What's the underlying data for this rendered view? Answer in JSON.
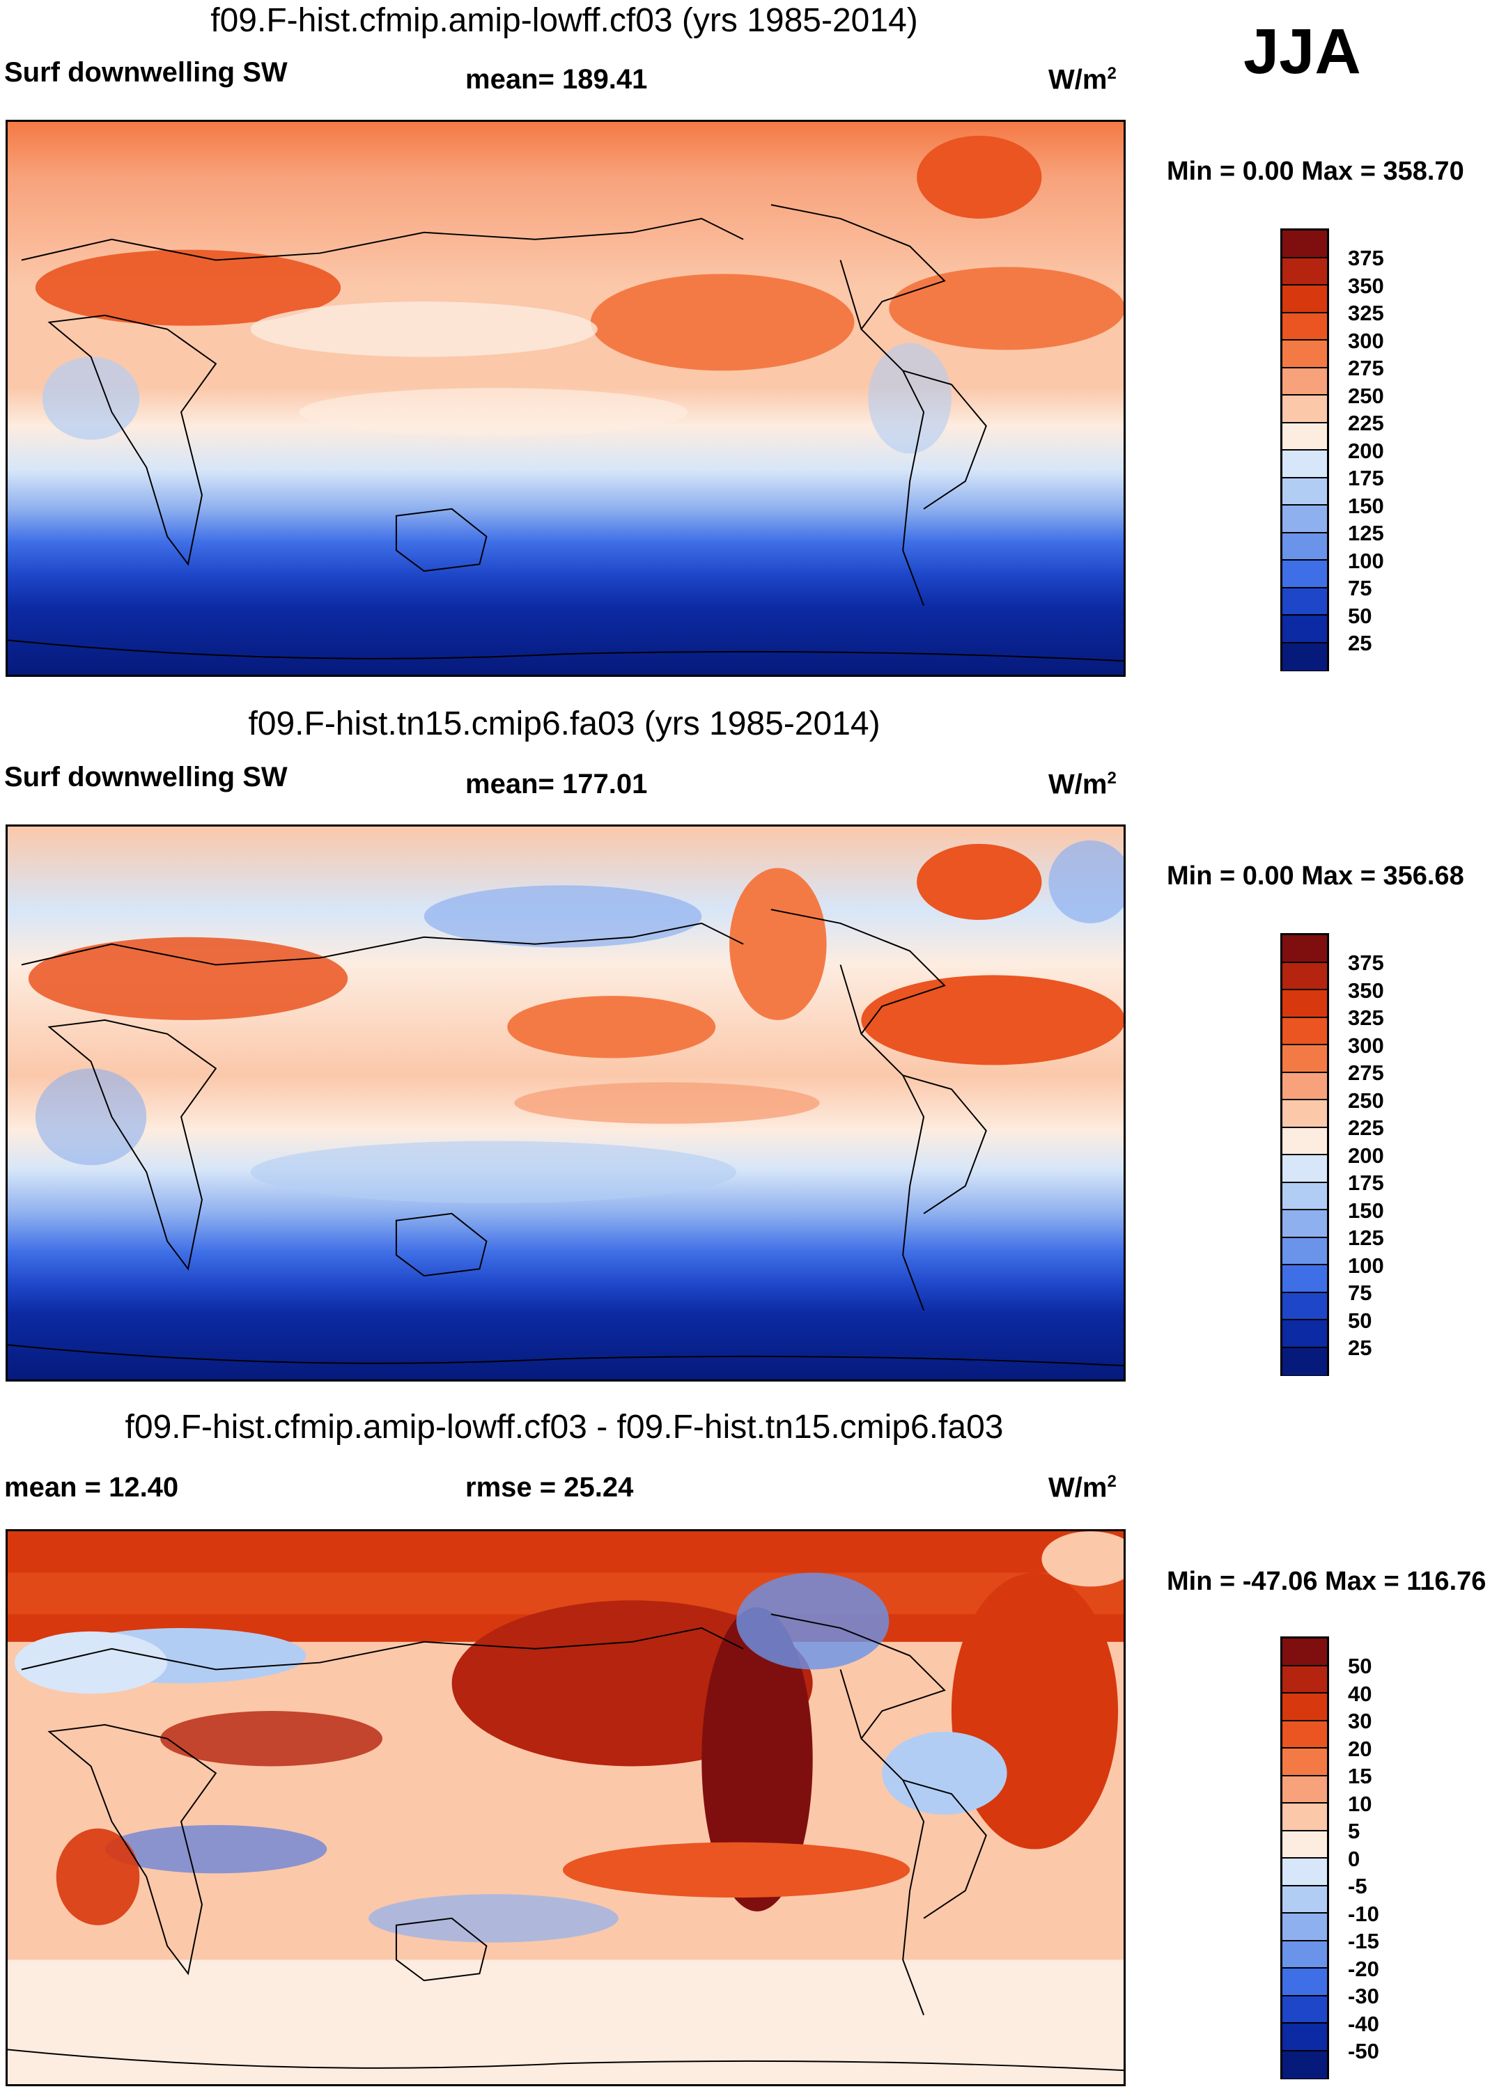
{
  "season": "JJA",
  "panels": [
    {
      "title": "f09.F-hist.cfmip.amip-lowff.cf03 (yrs 1985-2014)",
      "left_label": "Surf downwelling SW",
      "center_label": "mean= 189.41",
      "units": "W/m",
      "units_sup": "2",
      "minmax": "Min =   0.00 Max = 358.70"
    },
    {
      "title": "f09.F-hist.tn15.cmip6.fa03 (yrs 1985-2014)",
      "left_label": "Surf downwelling SW",
      "center_label": "mean= 177.01",
      "units": "W/m",
      "units_sup": "2",
      "minmax": "Min =   0.00 Max = 356.68"
    },
    {
      "title": "f09.F-hist.cfmip.amip-lowff.cf03 - f09.F-hist.tn15.cmip6.fa03",
      "left_label": "mean =  12.40",
      "center_label": "rmse =  25.24",
      "units": "W/m",
      "units_sup": "2",
      "minmax": "Min = -47.06 Max = 116.76"
    }
  ],
  "colorbar_abs": {
    "labels": [
      "375",
      "350",
      "325",
      "300",
      "275",
      "250",
      "225",
      "200",
      "175",
      "150",
      "125",
      "100",
      "75",
      "50",
      "25"
    ],
    "colors": [
      "#7f0f0f",
      "#b5240e",
      "#d8380e",
      "#ea5521",
      "#f47a45",
      "#f8a27b",
      "#fbc8aa",
      "#fdece0",
      "#d7e6f8",
      "#b2cdf4",
      "#8eb0ef",
      "#6a93ea",
      "#3f6fe6",
      "#1e46c8",
      "#0c2aa3",
      "#061a7c"
    ]
  },
  "colorbar_diff": {
    "labels": [
      "50",
      "40",
      "30",
      "20",
      "15",
      "10",
      "5",
      "0",
      "-5",
      "-10",
      "-15",
      "-20",
      "-30",
      "-40",
      "-50"
    ],
    "colors": [
      "#7f0f0f",
      "#b5240e",
      "#d8380e",
      "#ea5521",
      "#f47a45",
      "#f8a27b",
      "#fbc8aa",
      "#fdece0",
      "#d7e6f8",
      "#b2cdf4",
      "#8eb0ef",
      "#6a93ea",
      "#3f6fe6",
      "#1e46c8",
      "#0c2aa3",
      "#061a7c"
    ]
  }
}
